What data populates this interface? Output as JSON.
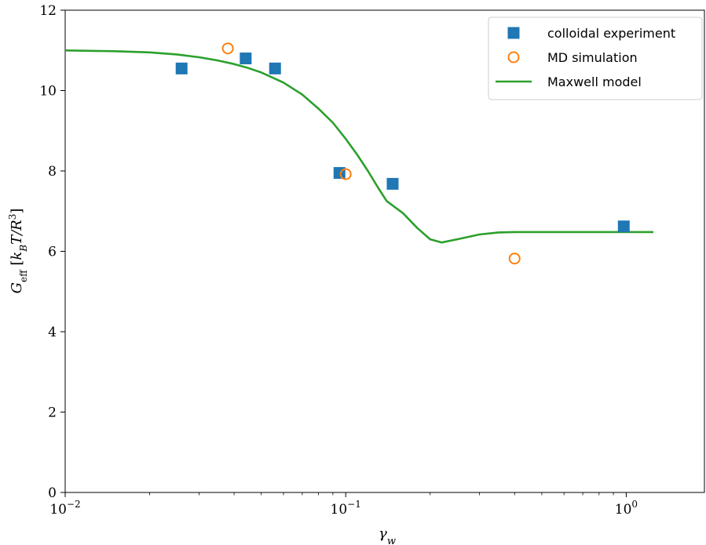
{
  "chart_data": {
    "type": "scatter",
    "title": "",
    "xlabel": "γ_w",
    "ylabel": "G_eff [k_B T/R³]",
    "xscale": "log",
    "xlim": [
      0.01,
      1.9
    ],
    "ylim": [
      0,
      12
    ],
    "x_ticks": [
      {
        "value": 0.01,
        "base": "10",
        "exp": "−2"
      },
      {
        "value": 0.1,
        "base": "10",
        "exp": "−1"
      },
      {
        "value": 1,
        "base": "10",
        "exp": "0"
      }
    ],
    "y_ticks": [
      0,
      2,
      4,
      6,
      8,
      10,
      12
    ],
    "grid": false,
    "legend_position": "top-right",
    "series": [
      {
        "name": "colloidal experiment",
        "kind": "scatter",
        "marker": "square",
        "color": "#1f77b4",
        "x": [
          0.026,
          0.044,
          0.056,
          0.095,
          0.147,
          0.98
        ],
        "y": [
          10.55,
          10.8,
          10.55,
          7.95,
          7.68,
          6.62
        ]
      },
      {
        "name": "MD simulation",
        "kind": "scatter",
        "marker": "open-circle",
        "color": "#ff7f0e",
        "x": [
          0.038,
          0.1,
          0.4
        ],
        "y": [
          11.05,
          7.92,
          5.82
        ]
      },
      {
        "name": "Maxwell model",
        "kind": "line",
        "color": "#2ca02c",
        "x": [
          0.01,
          0.015,
          0.02,
          0.025,
          0.03,
          0.035,
          0.04,
          0.045,
          0.05,
          0.06,
          0.07,
          0.08,
          0.09,
          0.1,
          0.11,
          0.12,
          0.13,
          0.14,
          0.16,
          0.18,
          0.2,
          0.22,
          0.25,
          0.3,
          0.35,
          0.4,
          0.5,
          0.7,
          1.0,
          1.25
        ],
        "y": [
          11.0,
          10.98,
          10.95,
          10.9,
          10.83,
          10.75,
          10.66,
          10.56,
          10.45,
          10.2,
          9.9,
          9.55,
          9.2,
          8.8,
          8.4,
          8.0,
          7.6,
          7.25,
          6.95,
          6.58,
          6.3,
          6.22,
          6.3,
          6.42,
          6.47,
          6.48,
          6.48,
          6.48,
          6.48,
          6.48
        ]
      }
    ]
  }
}
